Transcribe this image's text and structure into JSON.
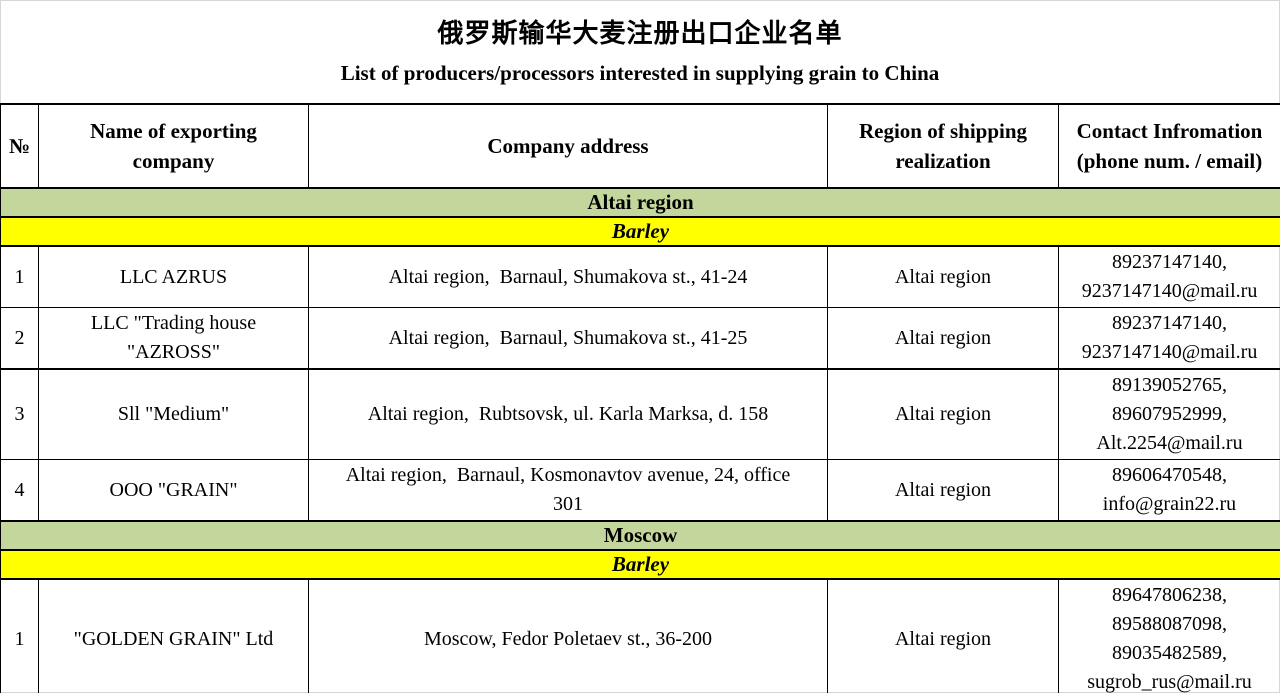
{
  "page": {
    "title_zh": "俄罗斯输华大麦注册出口企业名单",
    "title_en": "List of producers/processors interested in supplying grain to China"
  },
  "colors": {
    "region_band": "#c3d69b",
    "crop_band": "#ffff00",
    "border": "#000000",
    "text": "#000000"
  },
  "table": {
    "headers": {
      "num": "№",
      "name": "Name of exporting\ncompany",
      "address": "Company address",
      "region": "Region of shipping\nrealization",
      "contact": "Contact Infromation\n(phone num. / email)"
    },
    "sections": [
      {
        "region": "Altai region",
        "crop": "Barley",
        "rows": [
          {
            "num": "1",
            "name": "LLC AZRUS",
            "address": "Altai region,  Barnaul, Shumakova st., 41-24",
            "shipping_region": "Altai region",
            "contact": "89237147140,\n9237147140@mail.ru"
          },
          {
            "num": "2",
            "name": "LLC \"Trading house\n\"AZROSS\"",
            "address": "Altai region,  Barnaul, Shumakova st., 41-25",
            "shipping_region": "Altai region",
            "contact": "89237147140,\n9237147140@mail.ru"
          },
          {
            "num": "3",
            "name": "Sll \"Medium\"",
            "address": "Altai region,  Rubtsovsk, ul. Karla Marksa, d. 158",
            "shipping_region": "Altai region",
            "contact": "89139052765,\n89607952999,\nAlt.2254@mail.ru"
          },
          {
            "num": "4",
            "name": "OOO \"GRAIN\"",
            "address": "Altai region,  Barnaul, Kosmonavtov avenue, 24, office\n301",
            "shipping_region": "Altai region",
            "contact": "89606470548,\ninfo@grain22.ru"
          }
        ]
      },
      {
        "region": "Moscow",
        "crop": "Barley",
        "rows": [
          {
            "num": "1",
            "name": "\"GOLDEN GRAIN\" Ltd",
            "address": "Moscow, Fedor Poletaev st., 36-200",
            "shipping_region": "Altai region",
            "contact": "89647806238,\n89588087098,\n89035482589,\nsugrob_rus@mail.ru"
          }
        ]
      }
    ]
  }
}
